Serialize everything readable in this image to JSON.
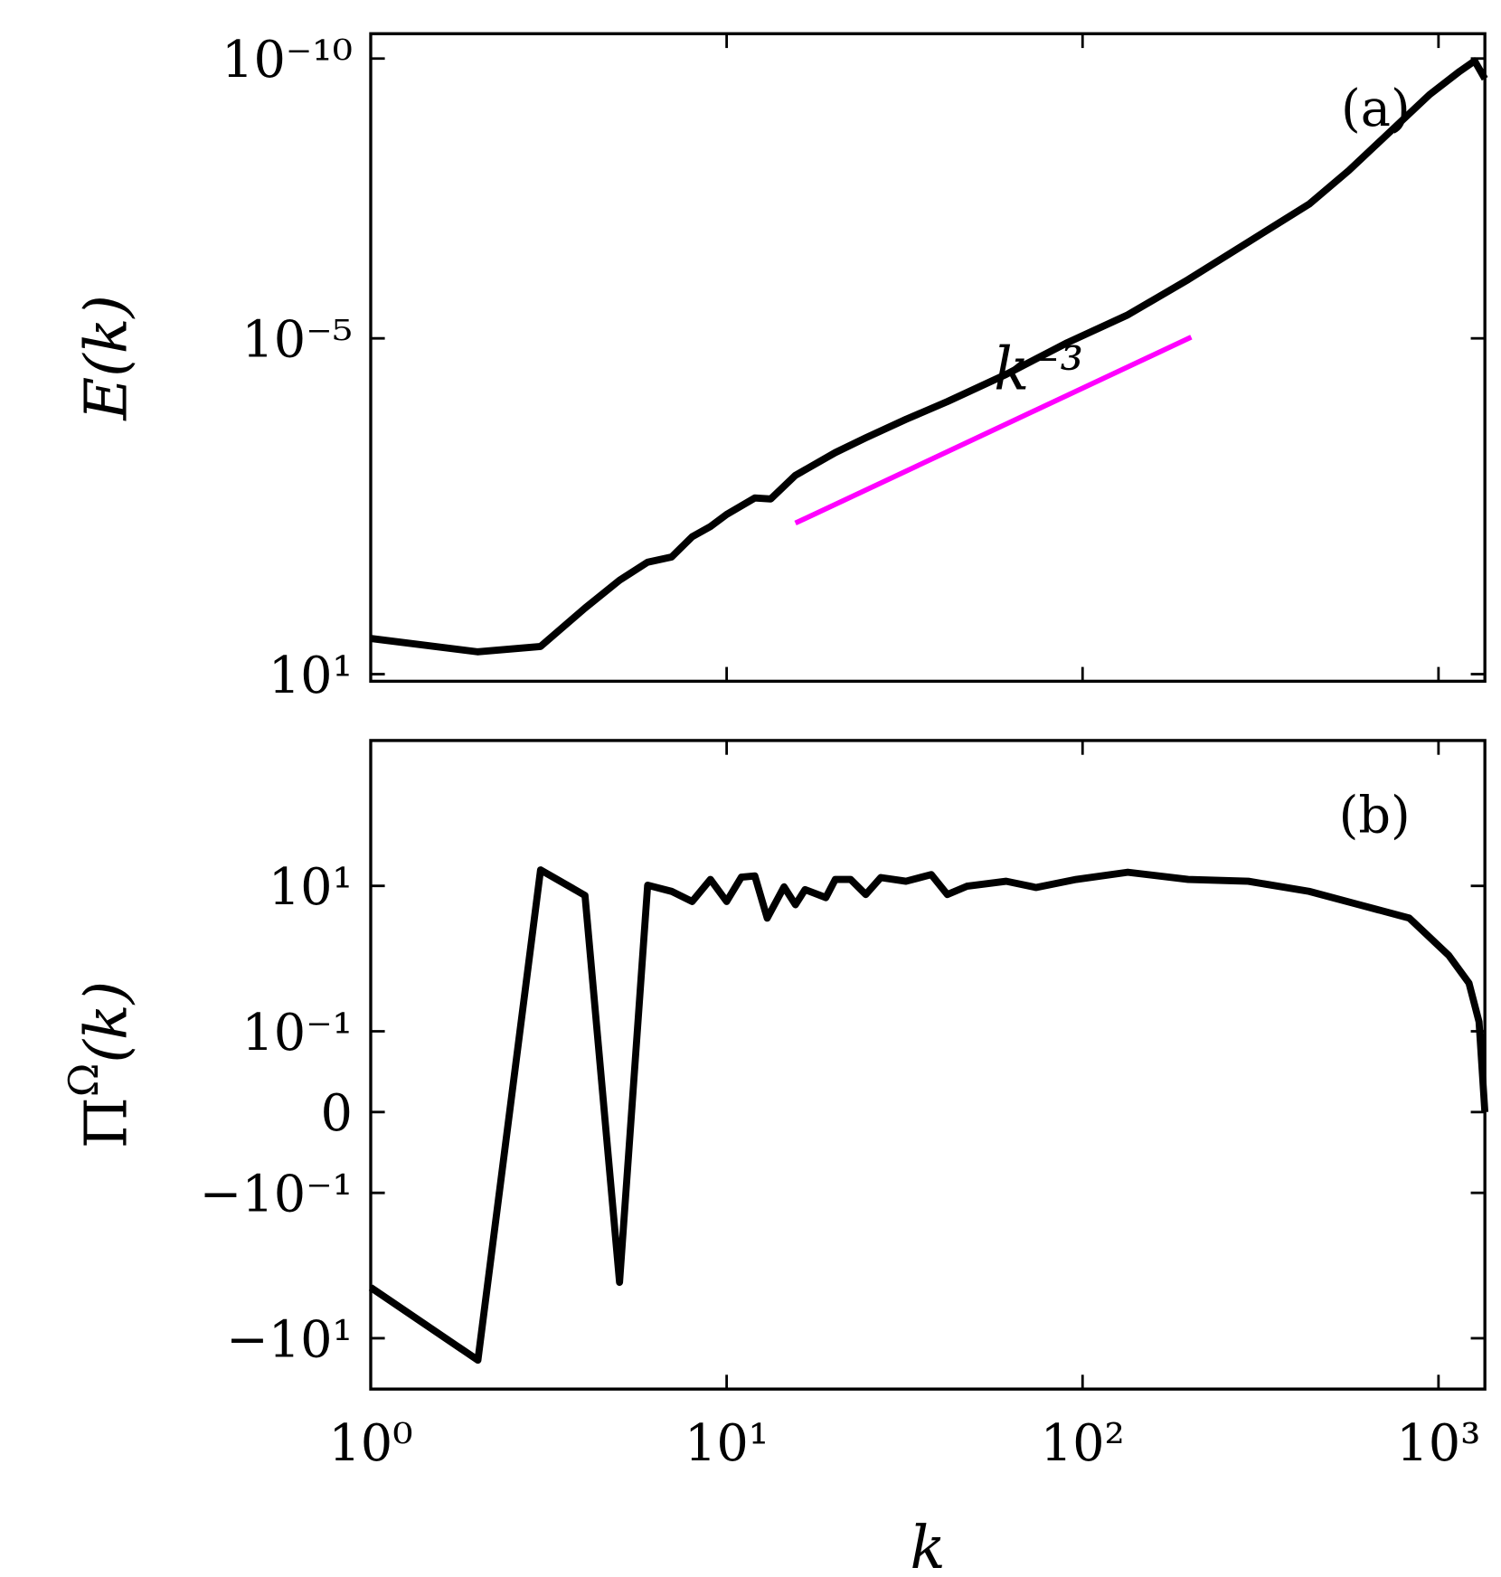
{
  "chart_data": [
    {
      "type": "line",
      "panel_label": "(a)",
      "ylabel": "E(k)",
      "xscale": "log",
      "yscale": "log",
      "xlim": [
        1,
        1350
      ],
      "ylim": [
        13.4,
        3.6e-11
      ],
      "xticks": [
        1,
        10,
        100,
        1000
      ],
      "yticks": [
        {
          "value": 10,
          "label": "10¹"
        },
        {
          "value": 1e-05,
          "label": "10⁻⁵"
        },
        {
          "value": 1e-10,
          "label": "10⁻¹⁰"
        }
      ],
      "x": [
        1,
        2,
        3,
        4,
        5,
        6,
        7,
        8,
        9,
        10,
        12,
        13.3,
        15.6,
        20.2,
        24.6,
        31.9,
        41.7,
        61,
        90.5,
        134,
        198,
        292,
        433,
        560,
        727,
        944,
        1146,
        1263,
        1350
      ],
      "series": [
        {
          "color": "#000000",
          "values": [
            2.3,
            4.0,
            3.2,
            0.66,
            0.21,
            0.1,
            0.081,
            0.035,
            0.023,
            0.014,
            0.0071,
            0.0074,
            0.0028,
            0.0011,
            0.0006,
            0.00028,
            0.000135,
            4.4e-05,
            1.2e-05,
            3.8e-06,
            8.9e-07,
            1.9e-07,
            4e-08,
            1e-08,
            2.1e-09,
            4.4e-10,
            1.7e-10,
            1.1e-10,
            2.3e-10
          ]
        }
      ],
      "reference_line": {
        "label": "k⁻³",
        "color": "#ff00ff",
        "x": [
          15.6,
          202
        ],
        "values": [
          0.02,
          9.5e-06
        ]
      }
    },
    {
      "type": "line",
      "panel_label": "(b)",
      "ylabel": [
        "Π",
        "Ω",
        "(k)"
      ],
      "xlabel": "k",
      "xscale": "log",
      "yscale": "symlog",
      "linthresh": 0.1,
      "xlim": [
        1,
        1350
      ],
      "ylim": [
        -50,
        1000
      ],
      "xticks": [
        {
          "value": 1,
          "label": "10⁰"
        },
        {
          "value": 10,
          "label": "10¹"
        },
        {
          "value": 100,
          "label": "10²"
        },
        {
          "value": 1000,
          "label": "10³"
        }
      ],
      "yticks": [
        {
          "value": -10,
          "label": "−10¹"
        },
        {
          "value": -0.1,
          "label": "−10⁻¹"
        },
        0,
        {
          "value": 0.1,
          "label": "10⁻¹"
        },
        {
          "value": 10,
          "label": "10¹"
        }
      ],
      "x": [
        1,
        2,
        3,
        4,
        5,
        6,
        7,
        8,
        9,
        10,
        11,
        12,
        13,
        14.5,
        15.6,
        16.6,
        19,
        20.2,
        22.3,
        24.6,
        27.1,
        31.9,
        37.6,
        41.7,
        47.3,
        61,
        74,
        96,
        134,
        198,
        292,
        433,
        599,
        828,
        1070,
        1218,
        1300,
        1350
      ],
      "series": [
        {
          "color": "#000000",
          "values": [
            -2.0,
            -20,
            16.6,
            7.4,
            -1.7,
            10.2,
            8.4,
            6.1,
            12.3,
            6.1,
            13.2,
            13.7,
            3.6,
            9.7,
            5.5,
            8.9,
            6.9,
            12.3,
            12.3,
            7.6,
            13,
            11.6,
            14.3,
            7.6,
            9.9,
            11.6,
            9.5,
            12.3,
            15.4,
            12.3,
            11.6,
            8.4,
            5.5,
            3.6,
            1.1,
            0.46,
            0.135,
            0
          ]
        }
      ]
    }
  ]
}
